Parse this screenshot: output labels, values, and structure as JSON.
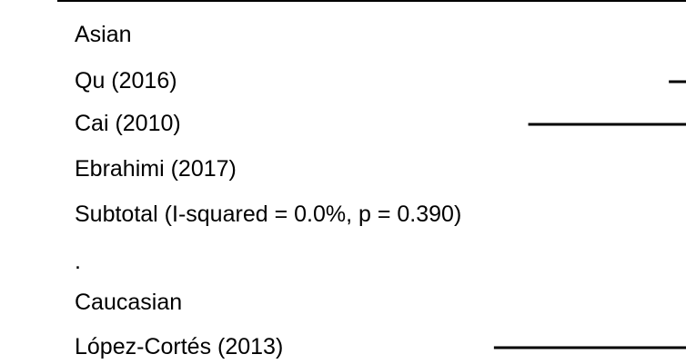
{
  "chart_data": {
    "type": "forest",
    "rows": [
      {
        "label": "Asian",
        "kind": "group"
      },
      {
        "label": "Qu (2016)",
        "kind": "study",
        "ci": [
          0.975,
          1.0
        ]
      },
      {
        "label": "Cai (2010)",
        "kind": "study",
        "ci": [
          0.77,
          1.0
        ]
      },
      {
        "label": "Ebrahimi (2017)",
        "kind": "study"
      },
      {
        "label": "Subtotal  (I-squared = 0.0%, p = 0.390)",
        "kind": "subtotal"
      },
      {
        "label": ".",
        "kind": "spacer"
      },
      {
        "label": "Caucasian",
        "kind": "group"
      },
      {
        "label": "López-Cortés (2013)",
        "kind": "study",
        "ci": [
          0.72,
          1.0
        ]
      }
    ],
    "x_visible_range": [
      0,
      1
    ],
    "colors": {
      "ink": "#000000",
      "background": "#ffffff"
    }
  }
}
